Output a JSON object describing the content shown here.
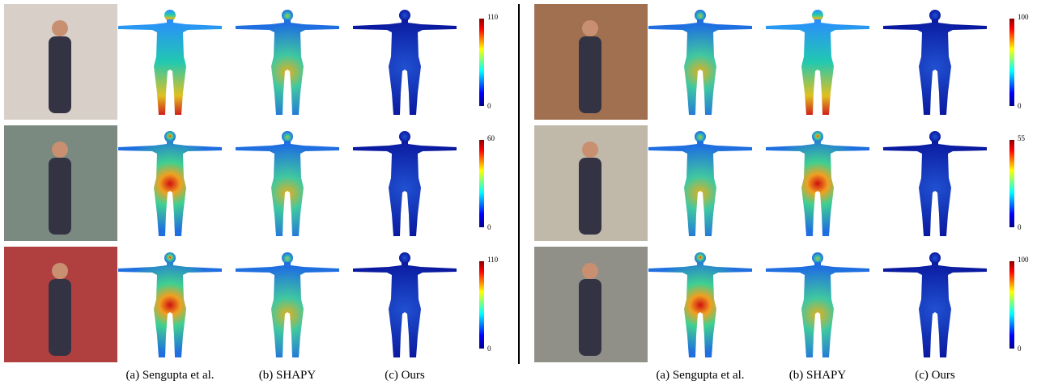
{
  "panels": [
    {
      "rows": [
        {
          "colorbar": {
            "max": "110",
            "min": "0"
          }
        },
        {
          "colorbar": {
            "max": "60",
            "min": "0"
          }
        },
        {
          "colorbar": {
            "max": "110",
            "min": "0"
          }
        }
      ],
      "captions": [
        "(a) Sengupta et al.",
        "(b) SHAPY",
        "(c) Ours"
      ]
    },
    {
      "rows": [
        {
          "colorbar": {
            "max": "100",
            "min": "0"
          }
        },
        {
          "colorbar": {
            "max": "55",
            "min": "0"
          }
        },
        {
          "colorbar": {
            "max": "100",
            "min": "0"
          }
        }
      ],
      "captions": [
        "(a) Sengupta et al.",
        "(b) SHAPY",
        "(c) Ours"
      ]
    }
  ]
}
